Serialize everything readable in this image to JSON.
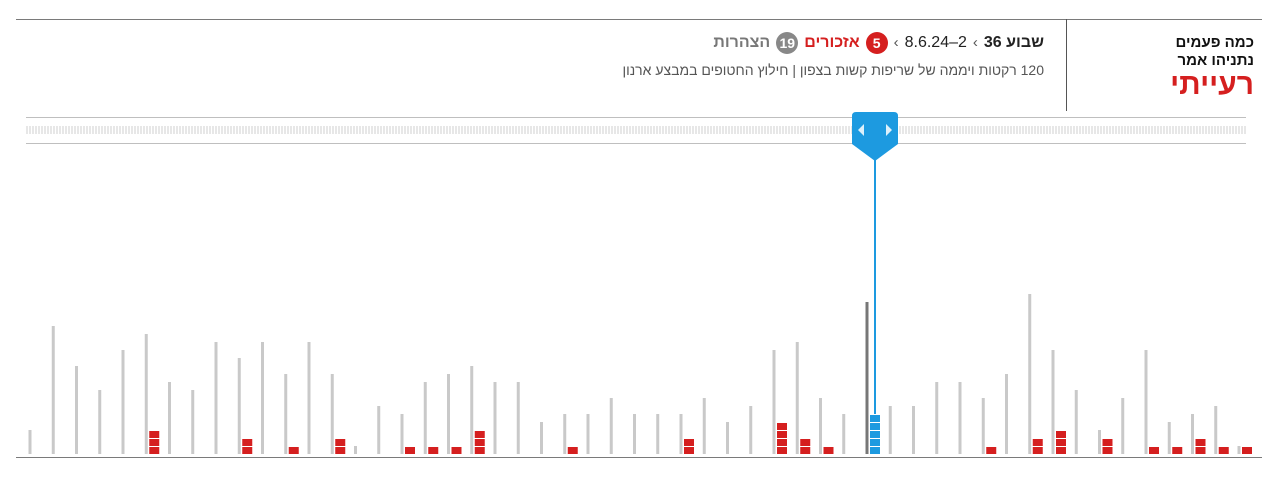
{
  "brand": {
    "line1": "כמה פעמים",
    "line2": "נתניהו אמר",
    "line3": "רעייתי"
  },
  "header": {
    "week_label": "שבוע",
    "week_number": "36",
    "dates": "2–8.6.24",
    "mentions_count": "5",
    "mentions_label": "אזכורים",
    "statements_count": "19",
    "statements_label": "הצהרות",
    "separator": "›",
    "subtitle": "120 רקטות ויממה של שריפות קשות בצפון | חילוץ החטופים במבצע ארנון"
  },
  "colors": {
    "accent_red": "#d51f1f",
    "selected_blue": "#1d9ae0",
    "gray_bar": "#c9c9c9",
    "selected_gray": "#777777"
  },
  "chart_data": {
    "type": "bar",
    "description_of_encoding": "per week: gray = statements, red = mentions",
    "selected_week_index": 36,
    "series": [
      {
        "name": "הצהרות",
        "values": [
          3,
          16,
          11,
          8,
          13,
          15,
          9,
          8,
          14,
          12,
          14,
          10,
          14,
          10,
          1,
          6,
          5,
          9,
          10,
          11,
          9,
          9,
          4,
          5,
          5,
          7,
          5,
          5,
          5,
          7,
          4,
          6,
          13,
          14,
          7,
          5,
          19,
          6,
          6,
          9,
          9,
          7,
          10,
          20,
          13,
          8,
          3,
          7,
          13,
          4,
          5,
          6,
          1
        ]
      },
      {
        "name": "אזכורים",
        "values": [
          0,
          0,
          0,
          0,
          0,
          3,
          0,
          0,
          0,
          2,
          0,
          1,
          0,
          2,
          0,
          0,
          1,
          1,
          1,
          3,
          0,
          0,
          0,
          1,
          0,
          0,
          0,
          0,
          2,
          0,
          0,
          0,
          4,
          2,
          1,
          0,
          5,
          0,
          0,
          0,
          0,
          1,
          0,
          2,
          3,
          0,
          2,
          0,
          1,
          1,
          2,
          1,
          1
        ]
      }
    ]
  },
  "scrubber": {
    "left_icon": "chevron-left-icon",
    "right_icon": "chevron-right-icon"
  }
}
